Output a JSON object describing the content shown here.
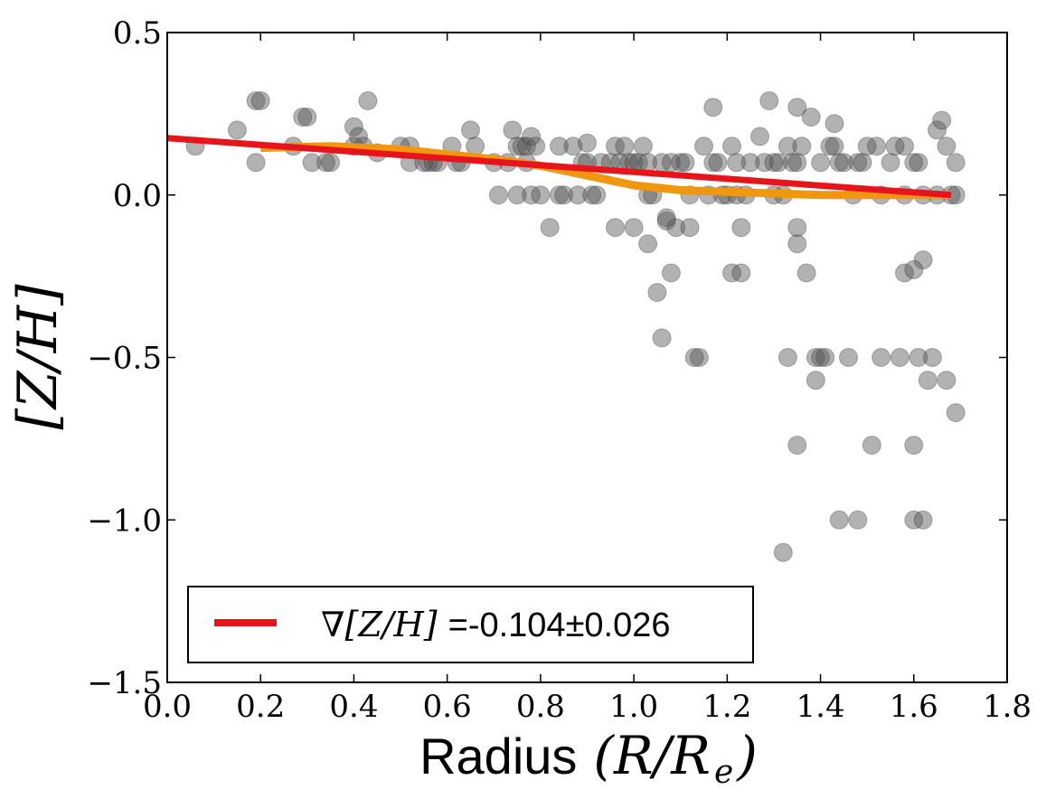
{
  "chart_data": {
    "type": "scatter",
    "title": "",
    "xlabel": {
      "word": "Radius",
      "math": "(R/R",
      "sub": "e",
      "close": ")"
    },
    "ylabel": "[Z/H]",
    "xlim": [
      0.0,
      1.8
    ],
    "ylim": [
      -1.5,
      0.5
    ],
    "grid": false,
    "x_ticks": [
      0.0,
      0.2,
      0.4,
      0.6,
      0.8,
      1.0,
      1.2,
      1.4,
      1.6,
      1.8
    ],
    "x_tick_labels": [
      "0.0",
      "0.2",
      "0.4",
      "0.6",
      "0.8",
      "1.0",
      "1.2",
      "1.4",
      "1.6",
      "1.8"
    ],
    "y_ticks": [
      0.5,
      0.0,
      -0.5,
      -1.0,
      -1.5
    ],
    "y_tick_labels": [
      "0.5",
      "0.0",
      "−0.5",
      "−1.0",
      "−1.5"
    ],
    "legend": {
      "position": "lower-left",
      "entries": [
        {
          "label_math": "∇[Z/H]",
          "label_text": "=-0.104±0.026",
          "color": "#e8141c"
        }
      ]
    },
    "series": [
      {
        "name": "data points",
        "kind": "scatter",
        "color": "#555555",
        "opacity": 0.45,
        "points": [
          [
            0.06,
            0.15
          ],
          [
            0.15,
            0.2
          ],
          [
            0.19,
            0.29
          ],
          [
            0.2,
            0.29
          ],
          [
            0.19,
            0.1
          ],
          [
            0.27,
            0.15
          ],
          [
            0.29,
            0.24
          ],
          [
            0.3,
            0.24
          ],
          [
            0.31,
            0.1
          ],
          [
            0.34,
            0.1
          ],
          [
            0.35,
            0.1
          ],
          [
            0.4,
            0.21
          ],
          [
            0.4,
            0.15
          ],
          [
            0.41,
            0.18
          ],
          [
            0.42,
            0.15
          ],
          [
            0.43,
            0.29
          ],
          [
            0.45,
            0.13
          ],
          [
            0.5,
            0.15
          ],
          [
            0.52,
            0.15
          ],
          [
            0.52,
            0.1
          ],
          [
            0.55,
            0.1
          ],
          [
            0.56,
            0.1
          ],
          [
            0.57,
            0.1
          ],
          [
            0.58,
            0.1
          ],
          [
            0.61,
            0.15
          ],
          [
            0.62,
            0.1
          ],
          [
            0.63,
            0.1
          ],
          [
            0.65,
            0.2
          ],
          [
            0.66,
            0.15
          ],
          [
            0.7,
            0.1
          ],
          [
            0.71,
            0.0
          ],
          [
            0.73,
            0.1
          ],
          [
            0.74,
            0.2
          ],
          [
            0.75,
            0.15
          ],
          [
            0.75,
            0.0
          ],
          [
            0.76,
            0.15
          ],
          [
            0.77,
            0.15
          ],
          [
            0.77,
            0.1
          ],
          [
            0.78,
            0.18
          ],
          [
            0.78,
            0.0
          ],
          [
            0.79,
            0.15
          ],
          [
            0.8,
            0.0
          ],
          [
            0.82,
            -0.1
          ],
          [
            0.84,
            0.15
          ],
          [
            0.84,
            0.0
          ],
          [
            0.85,
            0.0
          ],
          [
            0.87,
            0.15
          ],
          [
            0.88,
            0.0
          ],
          [
            0.89,
            0.1
          ],
          [
            0.9,
            0.16
          ],
          [
            0.9,
            0.1
          ],
          [
            0.91,
            0.0
          ],
          [
            0.92,
            0.0
          ],
          [
            0.93,
            0.1
          ],
          [
            0.95,
            0.1
          ],
          [
            0.96,
            0.15
          ],
          [
            0.96,
            -0.1
          ],
          [
            0.97,
            0.1
          ],
          [
            0.98,
            0.15
          ],
          [
            0.99,
            0.1
          ],
          [
            1.0,
            -0.1
          ],
          [
            1.0,
            0.1
          ],
          [
            1.01,
            0.1
          ],
          [
            1.02,
            0.15
          ],
          [
            1.03,
            0.1
          ],
          [
            1.03,
            0.0
          ],
          [
            1.03,
            -0.15
          ],
          [
            1.04,
            0.0
          ],
          [
            1.05,
            -0.3
          ],
          [
            1.06,
            0.1
          ],
          [
            1.07,
            -0.08
          ],
          [
            1.08,
            -0.24
          ],
          [
            1.08,
            0.1
          ],
          [
            1.09,
            -0.1
          ],
          [
            1.1,
            0.1
          ],
          [
            1.11,
            0.1
          ],
          [
            1.12,
            0.0
          ],
          [
            1.13,
            -0.5
          ],
          [
            1.14,
            -0.5
          ],
          [
            1.15,
            0.15
          ],
          [
            1.16,
            0.0
          ],
          [
            1.17,
            0.27
          ],
          [
            1.17,
            0.1
          ],
          [
            1.18,
            0.1
          ],
          [
            1.19,
            0.0
          ],
          [
            1.2,
            0.0
          ],
          [
            1.21,
            0.15
          ],
          [
            1.21,
            -0.24
          ],
          [
            1.22,
            0.1
          ],
          [
            1.22,
            0.0
          ],
          [
            1.23,
            -0.24
          ],
          [
            1.23,
            -0.1
          ],
          [
            1.24,
            0.0
          ],
          [
            1.25,
            0.1
          ],
          [
            1.27,
            0.18
          ],
          [
            1.28,
            0.1
          ],
          [
            1.29,
            0.29
          ],
          [
            1.3,
            0.1
          ],
          [
            1.31,
            0.1
          ],
          [
            1.32,
            -1.1
          ],
          [
            1.32,
            0.0
          ],
          [
            1.33,
            0.15
          ],
          [
            1.33,
            -0.5
          ],
          [
            1.34,
            0.1
          ],
          [
            1.35,
            0.27
          ],
          [
            1.35,
            0.1
          ],
          [
            1.35,
            -0.1
          ],
          [
            1.35,
            -0.15
          ],
          [
            1.35,
            -0.77
          ],
          [
            1.36,
            0.15
          ],
          [
            1.37,
            -0.24
          ],
          [
            1.38,
            0.24
          ],
          [
            1.39,
            -0.5
          ],
          [
            1.4,
            -0.5
          ],
          [
            1.4,
            0.1
          ],
          [
            1.41,
            -0.5
          ],
          [
            1.42,
            0.15
          ],
          [
            1.43,
            0.15
          ],
          [
            1.43,
            0.22
          ],
          [
            1.44,
            0.1
          ],
          [
            1.44,
            -1.0
          ],
          [
            1.45,
            0.1
          ],
          [
            1.46,
            -0.5
          ],
          [
            1.48,
            0.1
          ],
          [
            1.48,
            -1.0
          ],
          [
            1.49,
            0.1
          ],
          [
            1.5,
            0.15
          ],
          [
            1.51,
            -0.77
          ],
          [
            1.52,
            0.15
          ],
          [
            1.53,
            -0.5
          ],
          [
            1.55,
            0.1
          ],
          [
            1.56,
            0.15
          ],
          [
            1.57,
            -0.5
          ],
          [
            1.58,
            0.15
          ],
          [
            1.58,
            -0.24
          ],
          [
            1.6,
            0.1
          ],
          [
            1.6,
            -0.77
          ],
          [
            1.6,
            -1.0
          ],
          [
            1.61,
            -0.5
          ],
          [
            1.61,
            0.1
          ],
          [
            1.62,
            -1.0
          ],
          [
            1.62,
            -0.2
          ],
          [
            1.63,
            -0.57
          ],
          [
            1.64,
            -0.5
          ],
          [
            1.65,
            0.2
          ],
          [
            1.66,
            0.23
          ],
          [
            1.67,
            0.15
          ],
          [
            1.67,
            -0.57
          ],
          [
            1.68,
            0.0
          ],
          [
            1.69,
            0.1
          ],
          [
            1.69,
            -0.67
          ],
          [
            1.39,
            -0.57
          ],
          [
            1.12,
            -0.1
          ],
          [
            1.07,
            -0.07
          ],
          [
            1.3,
            0.0
          ],
          [
            1.47,
            0.0
          ],
          [
            1.53,
            0.0
          ],
          [
            1.58,
            0.0
          ],
          [
            1.62,
            0.0
          ],
          [
            1.65,
            0.0
          ],
          [
            1.69,
            0.0
          ],
          [
            1.6,
            -0.23
          ],
          [
            1.06,
            -0.44
          ]
        ]
      },
      {
        "name": "running median",
        "kind": "line",
        "color": "#f0960f",
        "x": [
          0.2,
          0.35,
          0.5,
          0.6,
          0.7,
          0.8,
          0.9,
          1.0,
          1.1,
          1.2,
          1.3,
          1.4,
          1.5,
          1.6,
          1.68
        ],
        "y": [
          0.145,
          0.15,
          0.14,
          0.125,
          0.11,
          0.09,
          0.06,
          0.03,
          0.015,
          0.01,
          0.005,
          0.0,
          0.0,
          0.0,
          0.0
        ]
      },
      {
        "name": "linear fit",
        "kind": "line",
        "color": "#e8141c",
        "x": [
          0.0,
          1.68
        ],
        "y": [
          0.175,
          0.0
        ]
      }
    ]
  }
}
